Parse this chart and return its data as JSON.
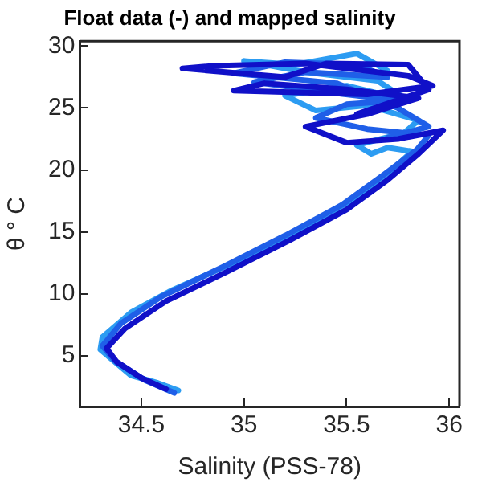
{
  "chart_data": {
    "type": "line",
    "title": "Float data (-) and mapped salinity",
    "xlabel": "Salinity (PSS-78)",
    "ylabel": "θ ° C",
    "xlim": [
      34.2,
      36.05
    ],
    "xticks": [
      34.5,
      35,
      35.5,
      36
    ],
    "ylim": [
      0.9,
      30.4
    ],
    "yticks": [
      5,
      10,
      15,
      20,
      25,
      30
    ],
    "grid": false,
    "legend": false,
    "marker": "none",
    "line_style": "solid",
    "series": [
      {
        "color": "#1010c8",
        "x": [
          34.62,
          34.5,
          34.38,
          34.33,
          34.42,
          34.62,
          34.92,
          35.22,
          35.5,
          35.7,
          35.85,
          35.97,
          35.75,
          35.5,
          35.3,
          35.6,
          35.85,
          35.5,
          35.1,
          34.95,
          35.6,
          35.92,
          35.8,
          35.3,
          34.85,
          34.7,
          35.2,
          35.4,
          35.8,
          35.9,
          35.55
        ],
        "values": [
          2.3,
          3.2,
          4.5,
          5.6,
          7.2,
          9.4,
          11.8,
          14.3,
          16.8,
          19.2,
          21.3,
          23.2,
          22.5,
          22.2,
          23.5,
          24.5,
          25.8,
          26.5,
          27.0,
          26.4,
          26.1,
          26.8,
          27.6,
          28.6,
          28.4,
          28.2,
          27.5,
          28.6,
          28.5,
          26.5,
          24.5
        ]
      },
      {
        "color": "#1f5fe8",
        "x": [
          34.66,
          34.52,
          34.37,
          34.31,
          34.4,
          34.6,
          34.9,
          35.2,
          35.48,
          35.68,
          35.84,
          35.9,
          35.6,
          35.35,
          35.5,
          35.75,
          35.4,
          35.05,
          35.3,
          35.7,
          35.55,
          35.2,
          34.95,
          35.45,
          35.75,
          35.9,
          35.7
        ],
        "values": [
          2.0,
          3.0,
          4.6,
          5.8,
          7.6,
          9.8,
          12.2,
          14.7,
          17.2,
          19.6,
          21.6,
          22.8,
          23.3,
          24.2,
          25.3,
          25.6,
          26.3,
          27.1,
          27.9,
          27.5,
          28.5,
          28.7,
          27.8,
          27.0,
          25.0,
          23.5,
          22.6
        ]
      },
      {
        "color": "#2c9cf2",
        "x": [
          34.68,
          34.58,
          34.45,
          34.3,
          34.31,
          34.45,
          34.65,
          34.95,
          35.25,
          35.52,
          35.72,
          35.82,
          35.7,
          35.62,
          35.55,
          35.78,
          35.85,
          35.6,
          35.35,
          35.2,
          35.5,
          35.8,
          35.65,
          35.3,
          35.0,
          35.25,
          35.55,
          35.7
        ],
        "values": [
          2.2,
          2.8,
          3.4,
          5.5,
          6.5,
          8.5,
          10.3,
          12.5,
          15.0,
          17.5,
          20.0,
          21.5,
          21.8,
          21.3,
          22.0,
          23.0,
          24.0,
          25.2,
          24.8,
          26.0,
          26.8,
          25.6,
          27.2,
          27.9,
          28.8,
          28.5,
          29.4,
          28.0
        ]
      }
    ]
  }
}
